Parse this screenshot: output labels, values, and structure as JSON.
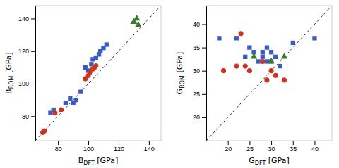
{
  "chart_data": [
    {
      "type": "scatter",
      "xlabel": "BDFT [GPa]",
      "ylabel": "BROM [GPa]",
      "xlim": [
        65,
        148
      ],
      "ylim": [
        65,
        148
      ],
      "xticks": [
        80,
        100,
        120,
        140
      ],
      "yticks": [
        80,
        100,
        120,
        140
      ],
      "grid": false,
      "series": [
        {
          "color": "#3a5bbf",
          "marker": "square",
          "x": [
            75,
            77,
            85,
            88,
            90,
            92,
            95,
            98,
            100,
            102,
            103,
            105,
            107,
            108,
            110,
            112
          ],
          "values": [
            82,
            84,
            88,
            91,
            88,
            90,
            95,
            110,
            108,
            112,
            115,
            116,
            118,
            120,
            122,
            124
          ]
        },
        {
          "color": "#cc3322",
          "marker": "circle",
          "x": [
            70,
            71,
            78,
            82,
            98,
            100,
            101,
            103,
            104,
            105
          ],
          "values": [
            70,
            71,
            82,
            84,
            103,
            105,
            107,
            109,
            110,
            111
          ]
        },
        {
          "color": "#3a7a2a",
          "marker": "triangle",
          "x": [
            130,
            132,
            133
          ],
          "values": [
            138,
            140,
            136
          ]
        }
      ]
    },
    {
      "type": "scatter",
      "xlabel": "GDFT [GPa]",
      "ylabel": "GROM [GPa]",
      "xlim": [
        15,
        44
      ],
      "ylim": [
        15,
        44
      ],
      "xticks": [
        20,
        25,
        30,
        35,
        40
      ],
      "yticks": [
        20,
        25,
        30,
        35,
        40
      ],
      "grid": false,
      "series": [
        {
          "color": "#3a5bbf",
          "marker": "square",
          "x": [
            18,
            22,
            24,
            25,
            26,
            27,
            28,
            28,
            29,
            29,
            30,
            30,
            31,
            32,
            35,
            40
          ],
          "values": [
            37,
            37,
            33,
            35,
            34,
            32,
            34,
            33,
            32,
            35,
            32,
            34,
            33,
            31,
            36,
            37
          ]
        },
        {
          "color": "#cc3322",
          "marker": "circle",
          "x": [
            19,
            22,
            23,
            24,
            25,
            28,
            29,
            30,
            31,
            33
          ],
          "values": [
            30,
            31,
            38,
            31,
            30,
            32,
            28,
            30,
            29,
            28
          ]
        },
        {
          "color": "#3a7a2a",
          "marker": "triangle",
          "x": [
            26,
            30,
            33
          ],
          "values": [
            33,
            32,
            33
          ]
        }
      ]
    }
  ]
}
